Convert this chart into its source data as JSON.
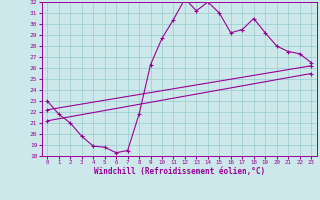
{
  "xlabel": "Windchill (Refroidissement éolien,°C)",
  "xlim": [
    -0.5,
    23.5
  ],
  "ylim": [
    18,
    32
  ],
  "xticks": [
    0,
    1,
    2,
    3,
    4,
    5,
    6,
    7,
    8,
    9,
    10,
    11,
    12,
    13,
    14,
    15,
    16,
    17,
    18,
    19,
    20,
    21,
    22,
    23
  ],
  "yticks": [
    18,
    19,
    20,
    21,
    22,
    23,
    24,
    25,
    26,
    27,
    28,
    29,
    30,
    31,
    32
  ],
  "bg_color": "#cce8ea",
  "line_color": "#990099",
  "grid_color": "#99cccc",
  "line1_x": [
    0,
    1,
    2,
    3,
    4,
    5,
    6,
    7,
    8,
    9,
    10,
    11,
    12,
    13,
    14,
    15,
    16,
    17,
    18,
    19,
    20,
    21,
    22,
    23
  ],
  "line1_y": [
    23.0,
    21.8,
    21.0,
    19.8,
    18.9,
    18.8,
    18.3,
    18.5,
    21.8,
    26.3,
    28.7,
    30.4,
    32.3,
    31.2,
    32.0,
    31.0,
    29.2,
    29.5,
    30.5,
    29.2,
    28.0,
    27.5,
    27.3,
    26.5
  ],
  "line2_x": [
    0,
    23
  ],
  "line2_y": [
    22.2,
    26.2
  ],
  "line3_x": [
    0,
    23
  ],
  "line3_y": [
    21.2,
    25.5
  ],
  "marker": "+"
}
